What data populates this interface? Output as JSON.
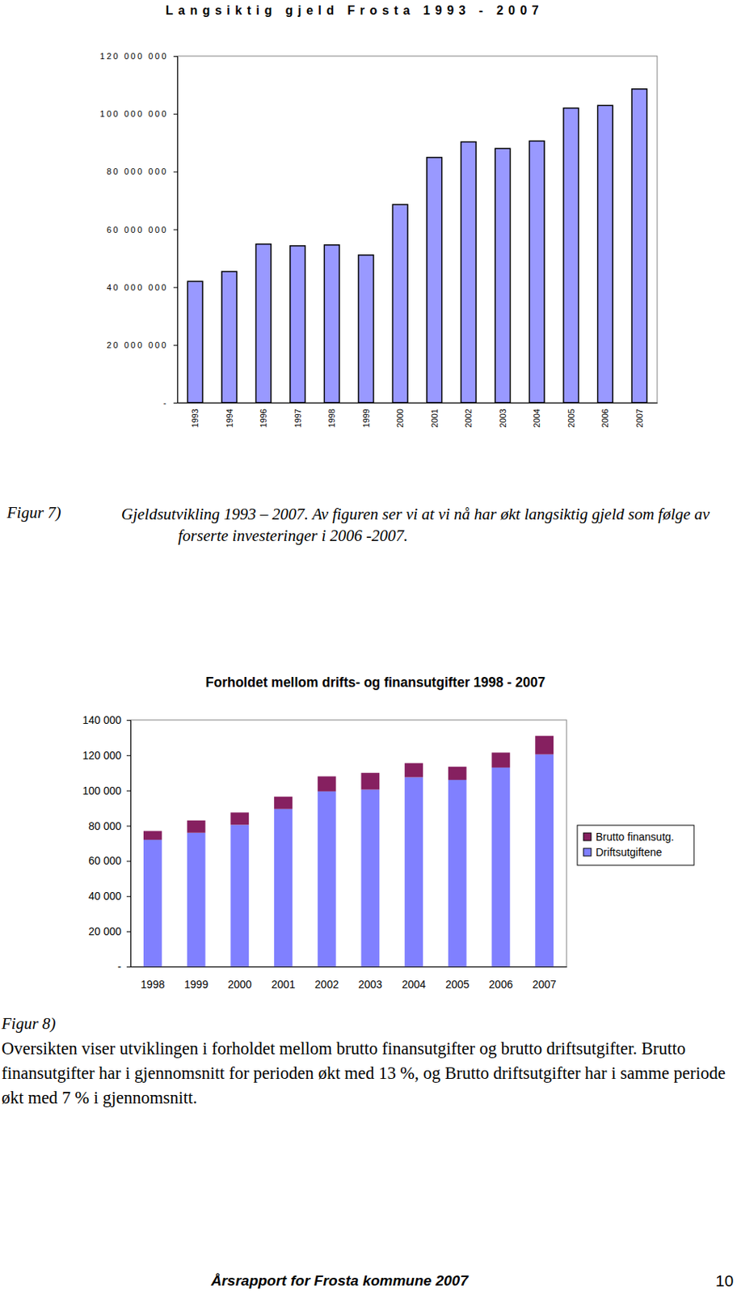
{
  "chart_data": [
    {
      "type": "bar",
      "title": "Langsiktig gjeld Frosta 1993 - 2007",
      "categories": [
        "1993",
        "1994",
        "1996",
        "1997",
        "1998",
        "1999",
        "2000",
        "2001",
        "2002",
        "2003",
        "2004",
        "2005",
        "2006",
        "2007"
      ],
      "values": [
        42000000,
        45400000,
        54900000,
        54300000,
        54600000,
        51100000,
        68600000,
        84900000,
        90300000,
        88000000,
        90600000,
        102000000,
        102900000,
        108600000
      ],
      "color": "#9999ff",
      "ylim": [
        0,
        120000000
      ],
      "yticks": [
        {
          "value": 0,
          "label": "-"
        },
        {
          "value": 20000000,
          "label": "20 000 000"
        },
        {
          "value": 40000000,
          "label": "40 000 000"
        },
        {
          "value": 60000000,
          "label": "60 000 000"
        },
        {
          "value": 80000000,
          "label": "80 000 000"
        },
        {
          "value": 100000000,
          "label": "100 000 000"
        },
        {
          "value": 120000000,
          "label": "120 000 000"
        }
      ],
      "grid": false
    },
    {
      "type": "bar",
      "title": "Forholdet mellom drifts- og finansutgifter 1998 - 2007",
      "categories": [
        "1998",
        "1999",
        "2000",
        "2001",
        "2002",
        "2003",
        "2004",
        "2005",
        "2006",
        "2007"
      ],
      "series": [
        {
          "name": "Driftsutgiftene",
          "color": "#8080ff",
          "values": [
            72000,
            76000,
            80500,
            89500,
            99500,
            100500,
            107500,
            106000,
            113000,
            120500
          ]
        },
        {
          "name": "Brutto finansutg.",
          "color": "#862060",
          "values": [
            5000,
            7000,
            7000,
            7000,
            8500,
            9500,
            8000,
            7500,
            8500,
            10500
          ]
        }
      ],
      "stacked": true,
      "legend": "right",
      "ylim": [
        0,
        140000
      ],
      "yticks": [
        {
          "value": 0,
          "label": "-"
        },
        {
          "value": 20000,
          "label": "20 000"
        },
        {
          "value": 40000,
          "label": "40 000"
        },
        {
          "value": 60000,
          "label": "60 000"
        },
        {
          "value": 80000,
          "label": "80 000"
        },
        {
          "value": 100000,
          "label": "100 000"
        },
        {
          "value": 120000,
          "label": "120 000"
        },
        {
          "value": 140000,
          "label": "140 000"
        }
      ],
      "grid": false
    }
  ],
  "captions": [
    {
      "label": "Figur 7)",
      "text": "Gjeldsutvikling 1993 – 2007. Av figuren ser vi at vi nå har økt langsiktig gjeld som følge av forserte investeringer i 2006 -2007."
    },
    {
      "label": "Figur 8)",
      "text": "Oversikten viser utviklingen i forholdet mellom brutto finansutgifter og brutto driftsutgifter. Brutto finansutgifter har i gjennomsnitt for perioden økt med 13 %, og Brutto driftsutgifter har i samme periode økt med 7 % i gjennomsnitt."
    }
  ],
  "footer": {
    "text": "Årsrapport for Frosta kommune 2007",
    "page": 10
  }
}
